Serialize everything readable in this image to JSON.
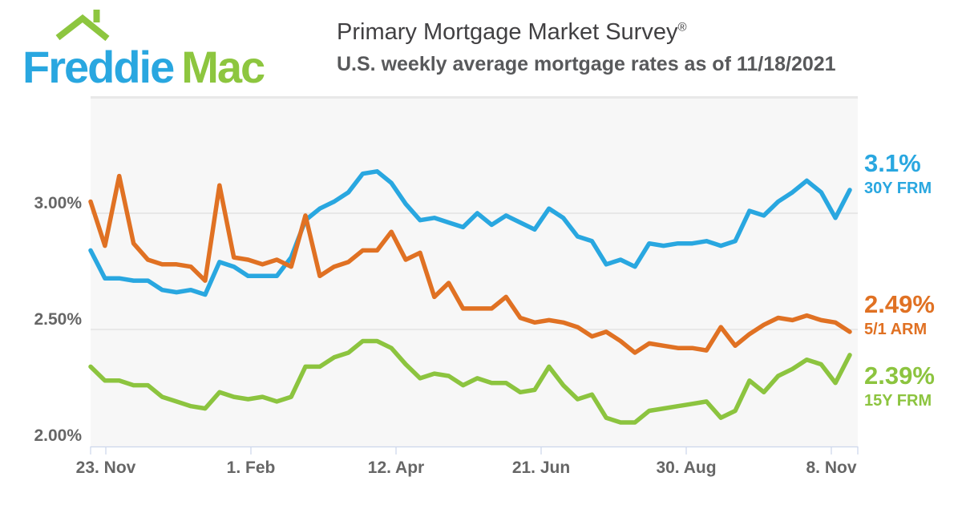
{
  "logo": {
    "part1": "Freddie",
    "part2": "Mac"
  },
  "chart_data": {
    "type": "line",
    "title": "Primary Mortgage Market Survey",
    "title_mark": "®",
    "subtitle": "U.S. weekly average mortgage rates as of 11/18/2021",
    "grid": true,
    "legend_position": "right-end-annotations",
    "x_unit": "week",
    "x_tick_labels": [
      "23. Nov",
      "1. Feb",
      "12. Apr",
      "21. Jun",
      "30. Aug",
      "8. Nov"
    ],
    "y_tick_labels": [
      "3.00%",
      "2.50%",
      "2.00%"
    ],
    "y_axis": {
      "min": 2.0,
      "max": 3.5,
      "ticks": [
        3.0,
        2.5,
        2.0
      ],
      "unit": "%"
    },
    "colors": {
      "blue": "#29A7E0",
      "orange": "#E07123",
      "green": "#8CC43F"
    },
    "series": [
      {
        "name": "30Y FRM",
        "label": "3.1%",
        "color": "#29A7E0",
        "values": [
          2.84,
          2.72,
          2.72,
          2.71,
          2.71,
          2.67,
          2.66,
          2.67,
          2.65,
          2.79,
          2.77,
          2.73,
          2.73,
          2.73,
          2.81,
          2.97,
          3.02,
          3.05,
          3.09,
          3.17,
          3.18,
          3.13,
          3.04,
          2.97,
          2.98,
          2.96,
          2.94,
          3.0,
          2.95,
          2.99,
          2.96,
          2.93,
          3.02,
          2.98,
          2.9,
          2.88,
          2.78,
          2.8,
          2.77,
          2.87,
          2.86,
          2.87,
          2.87,
          2.88,
          2.86,
          2.88,
          3.01,
          2.99,
          3.05,
          3.09,
          3.14,
          3.09,
          2.98,
          3.1
        ]
      },
      {
        "name": "15Y FRM",
        "label": "2.39%",
        "color": "#8CC43F",
        "values": [
          2.34,
          2.28,
          2.28,
          2.26,
          2.26,
          2.21,
          2.19,
          2.17,
          2.16,
          2.23,
          2.21,
          2.2,
          2.21,
          2.19,
          2.21,
          2.34,
          2.34,
          2.38,
          2.4,
          2.45,
          2.45,
          2.42,
          2.35,
          2.29,
          2.31,
          2.3,
          2.26,
          2.29,
          2.27,
          2.27,
          2.23,
          2.24,
          2.34,
          2.26,
          2.2,
          2.22,
          2.12,
          2.1,
          2.1,
          2.15,
          2.16,
          2.17,
          2.18,
          2.19,
          2.12,
          2.15,
          2.28,
          2.23,
          2.3,
          2.33,
          2.37,
          2.35,
          2.27,
          2.39
        ]
      },
      {
        "name": "5/1 ARM",
        "label": "2.49%",
        "color": "#E07123",
        "values": [
          3.05,
          2.86,
          3.16,
          2.87,
          2.8,
          2.78,
          2.78,
          2.77,
          2.71,
          3.12,
          2.81,
          2.8,
          2.78,
          2.8,
          2.77,
          2.99,
          2.73,
          2.77,
          2.79,
          2.84,
          2.84,
          2.92,
          2.8,
          2.83,
          2.64,
          2.7,
          2.59,
          2.59,
          2.59,
          2.64,
          2.55,
          2.53,
          2.54,
          2.53,
          2.51,
          2.47,
          2.49,
          2.45,
          2.4,
          2.44,
          2.43,
          2.42,
          2.42,
          2.41,
          2.51,
          2.43,
          2.48,
          2.52,
          2.55,
          2.54,
          2.56,
          2.54,
          2.53,
          2.49
        ]
      }
    ],
    "annotations": [
      {
        "rate": "3.1%",
        "series": "30Y FRM"
      },
      {
        "rate": "2.49%",
        "series": "5/1 ARM"
      },
      {
        "rate": "2.39%",
        "series": "15Y FRM"
      }
    ]
  }
}
